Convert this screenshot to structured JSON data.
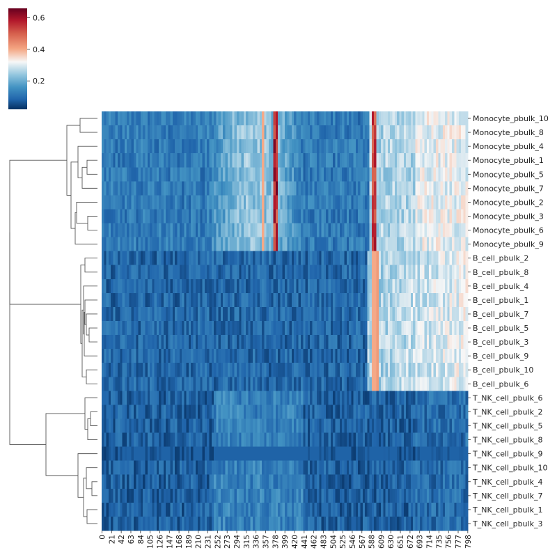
{
  "chart_data": {
    "type": "heatmap",
    "title": "",
    "xlabel": "",
    "ylabel": "",
    "x_tick_labels": [
      "0",
      "21",
      "42",
      "63",
      "84",
      "105",
      "126",
      "147",
      "168",
      "189",
      "210",
      "231",
      "252",
      "273",
      "294",
      "315",
      "336",
      "357",
      "378",
      "399",
      "420",
      "441",
      "462",
      "483",
      "504",
      "525",
      "546",
      "567",
      "588",
      "609",
      "630",
      "651",
      "672",
      "693",
      "714",
      "735",
      "756",
      "777",
      "798"
    ],
    "x_range": [
      0,
      798
    ],
    "rows": [
      "Monocyte_pbulk_10",
      "Monocyte_pbulk_8",
      "Monocyte_pbulk_4",
      "Monocyte_pbulk_1",
      "Monocyte_pbulk_5",
      "Monocyte_pbulk_7",
      "Monocyte_pbulk_2",
      "Monocyte_pbulk_3",
      "Monocyte_pbulk_6",
      "Monocyte_pbulk_9",
      "B_cell_pbulk_2",
      "B_cell_pbulk_8",
      "B_cell_pbulk_4",
      "B_cell_pbulk_1",
      "B_cell_pbulk_7",
      "B_cell_pbulk_5",
      "B_cell_pbulk_3",
      "B_cell_pbulk_9",
      "B_cell_pbulk_10",
      "B_cell_pbulk_6",
      "T_NK_cell_pbulk_6",
      "T_NK_cell_pbulk_2",
      "T_NK_cell_pbulk_5",
      "T_NK_cell_pbulk_8",
      "T_NK_cell_pbulk_9",
      "T_NK_cell_pbulk_10",
      "T_NK_cell_pbulk_4",
      "T_NK_cell_pbulk_7",
      "T_NK_cell_pbulk_1",
      "T_NK_cell_pbulk_3"
    ],
    "colorbar": {
      "colormap": "RdBu_r",
      "range": [
        0.02,
        0.66
      ],
      "tick_labels": [
        "0.2",
        "0.4",
        "0.6"
      ],
      "tick_values": [
        0.2,
        0.4,
        0.6
      ]
    },
    "row_dendrogram": "left",
    "grid": false
  }
}
